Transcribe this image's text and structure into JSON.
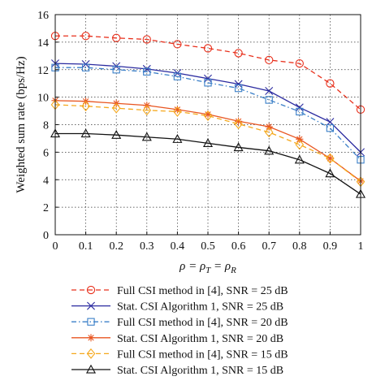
{
  "chart_data": {
    "type": "line",
    "xlabel": "ρ = ρ_T = ρ_R",
    "ylabel": "Weighted sum rate (bps/Hz)",
    "xlim": [
      0,
      1
    ],
    "ylim": [
      0,
      16
    ],
    "xticks": [
      0,
      0.1,
      0.2,
      0.3,
      0.4,
      0.5,
      0.6,
      0.7,
      0.8,
      0.9,
      1
    ],
    "xtick_labels": [
      "0",
      "0.1",
      "0.2",
      "0.3",
      "0.4",
      "0.5",
      "0.6",
      "0.7",
      "0.8",
      "0.9",
      "1"
    ],
    "yticks": [
      0,
      2,
      4,
      6,
      8,
      10,
      12,
      14,
      16
    ],
    "ytick_labels": [
      "0",
      "2",
      "4",
      "6",
      "8",
      "10",
      "12",
      "14",
      "16"
    ],
    "grid": "dotted",
    "legend_placement": "below",
    "x": [
      0,
      0.1,
      0.2,
      0.3,
      0.4,
      0.5,
      0.6,
      0.7,
      0.8,
      0.9,
      1
    ],
    "series": [
      {
        "name": "Full CSI method in [4], SNR = 25 dB",
        "color": "#e8301c",
        "dash": "dashed",
        "marker": "circle",
        "values": [
          14.45,
          14.45,
          14.3,
          14.2,
          13.85,
          13.55,
          13.2,
          12.7,
          12.45,
          11.0,
          9.1
        ]
      },
      {
        "name": "Stat. CSI Algorithm 1, SNR = 25 dB",
        "color": "#2b2ba0",
        "dash": "solid",
        "marker": "x",
        "values": [
          12.45,
          12.4,
          12.25,
          12.05,
          11.75,
          11.35,
          10.95,
          10.45,
          9.25,
          8.2,
          6.0
        ]
      },
      {
        "name": "Full CSI method in [4], SNR = 20 dB",
        "color": "#3a7fc8",
        "dash": "dashdot",
        "marker": "square",
        "values": [
          12.15,
          12.15,
          12.0,
          11.85,
          11.5,
          11.05,
          10.65,
          9.8,
          8.95,
          7.75,
          5.45
        ]
      },
      {
        "name": "Stat. CSI Algorithm 1, SNR = 20 dB",
        "color": "#e85520",
        "dash": "solid",
        "marker": "star",
        "values": [
          9.75,
          9.7,
          9.55,
          9.4,
          9.1,
          8.75,
          8.25,
          7.85,
          6.95,
          5.55,
          3.9
        ]
      },
      {
        "name": "Full CSI method in [4], SNR = 15 dB",
        "color": "#f5a81c",
        "dash": "dashed",
        "marker": "diamond",
        "values": [
          9.45,
          9.35,
          9.2,
          9.05,
          8.95,
          8.65,
          8.05,
          7.45,
          6.55,
          5.55,
          3.85
        ]
      },
      {
        "name": "Stat. CSI Algorithm 1, SNR = 15 dB",
        "color": "#111111",
        "dash": "solid",
        "marker": "triangle",
        "values": [
          7.35,
          7.35,
          7.25,
          7.1,
          6.95,
          6.65,
          6.35,
          6.1,
          5.45,
          4.45,
          2.95
        ]
      }
    ]
  }
}
